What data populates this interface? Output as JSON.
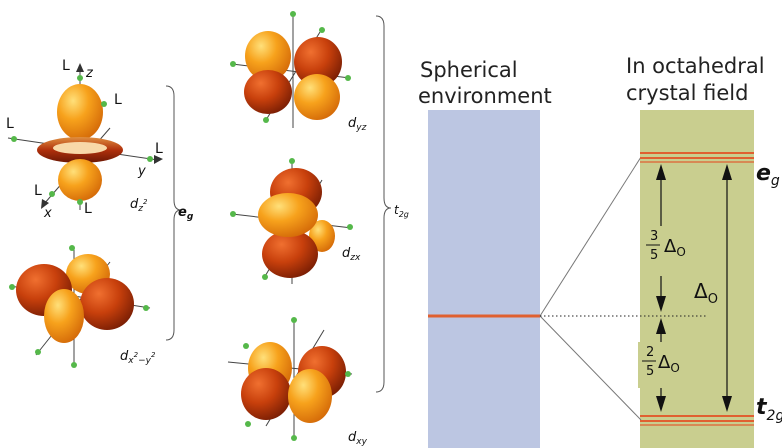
{
  "orbitals": {
    "dz2": {
      "base": "d",
      "sub": "z",
      "sup": "2"
    },
    "dx2y2": {
      "base": "d",
      "sub": "x",
      "sup": "2",
      "sub2": "−y",
      "sup2": "2"
    },
    "dyz": {
      "base": "d",
      "sub": "yz"
    },
    "dzx": {
      "base": "d",
      "sub": "zx"
    },
    "dxy": {
      "base": "d",
      "sub": "xy"
    }
  },
  "ligand_label": "L",
  "axes": {
    "x": "x",
    "y": "y",
    "z": "z"
  },
  "groups": {
    "eg": {
      "base": "e",
      "sub": "g"
    },
    "t2g": {
      "base": "t",
      "sub": "2g"
    }
  },
  "columns": {
    "spherical": {
      "line1": "Spherical",
      "line2": "environment"
    },
    "octahedral": {
      "line1": "In octahedral",
      "line2": "crystal field"
    }
  },
  "energy_labels": {
    "delta": "Δ",
    "delta_sub": "O",
    "upper_fraction": {
      "num": "3",
      "den": "5"
    },
    "lower_fraction": {
      "num": "2",
      "den": "5"
    }
  },
  "colors": {
    "lobe_orange": "#F7A21C",
    "lobe_red": "#C8400C",
    "ligand_green": "#55B84A",
    "spherical_fill": "#BCC6E2",
    "octahedral_fill": "#C9CE8F",
    "level_line": "#E06030"
  }
}
